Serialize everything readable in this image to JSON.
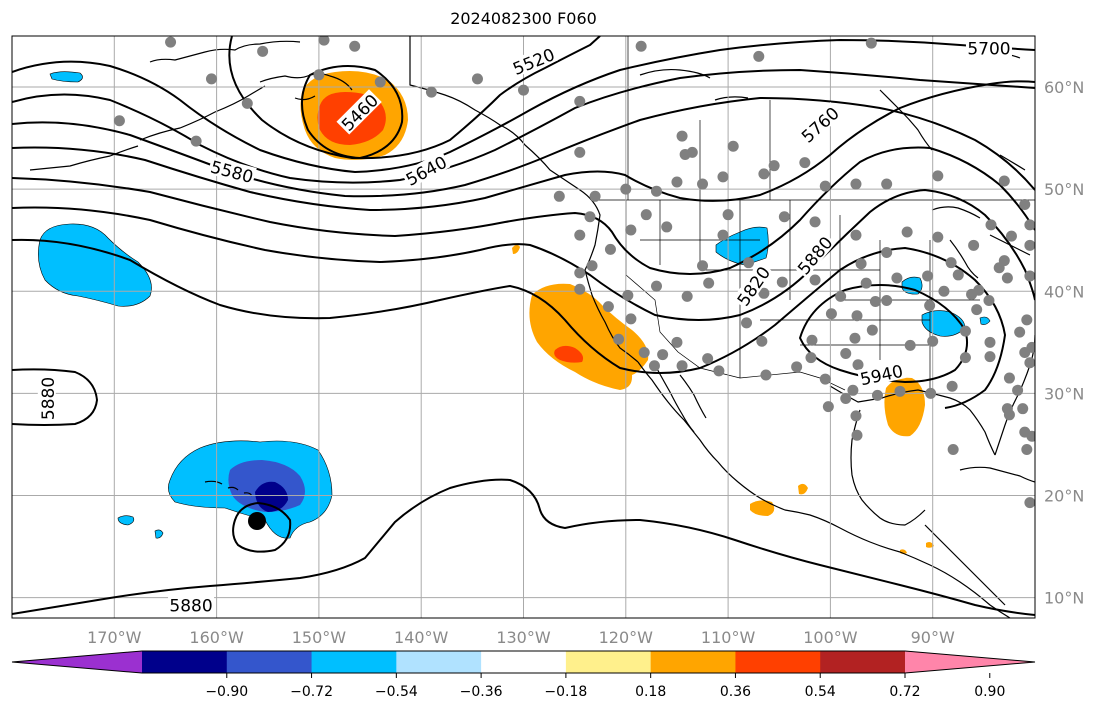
{
  "title": "2024082300 F060",
  "map": {
    "projection": "PlateCarree",
    "lon_range": [
      -180,
      -80
    ],
    "lat_range": [
      8,
      65
    ],
    "lon_ticks": [
      {
        "value": -170,
        "label": "170°W"
      },
      {
        "value": -160,
        "label": "160°W"
      },
      {
        "value": -150,
        "label": "150°W"
      },
      {
        "value": -140,
        "label": "140°W"
      },
      {
        "value": -130,
        "label": "130°W"
      },
      {
        "value": -120,
        "label": "120°W"
      },
      {
        "value": -110,
        "label": "110°W"
      },
      {
        "value": -100,
        "label": "100°W"
      },
      {
        "value": -90,
        "label": "90°W"
      }
    ],
    "lat_ticks": [
      {
        "value": 60,
        "label": "60°N"
      },
      {
        "value": 50,
        "label": "50°N"
      },
      {
        "value": 40,
        "label": "40°N"
      },
      {
        "value": 30,
        "label": "30°N"
      },
      {
        "value": 20,
        "label": "20°N"
      },
      {
        "value": 10,
        "label": "10°N"
      }
    ],
    "grid": true
  },
  "contours": {
    "labels": [
      {
        "text": "5460",
        "lon": -146,
        "lat": 57.5,
        "angle": -45
      },
      {
        "text": "5520",
        "lon": -129,
        "lat": 62.5,
        "angle": -22
      },
      {
        "text": "5580",
        "lon": -158.5,
        "lat": 51.7,
        "angle": 15
      },
      {
        "text": "5640",
        "lon": -139.5,
        "lat": 51.8,
        "angle": -28
      },
      {
        "text": "5700",
        "lon": -84.5,
        "lat": 63.8,
        "angle": 0
      },
      {
        "text": "5760",
        "lon": -101,
        "lat": 56.3,
        "angle": -42
      },
      {
        "text": "5820",
        "lon": -107.5,
        "lat": 40.5,
        "angle": -55
      },
      {
        "text": "5880",
        "lon": -101.5,
        "lat": 43.5,
        "angle": -50
      },
      {
        "text": "5940",
        "lon": -95,
        "lat": 31.8,
        "angle": -12
      },
      {
        "text": "5880",
        "lon": -176.5,
        "lat": 29.5,
        "angle": -90
      },
      {
        "text": "5880",
        "lon": -162.5,
        "lat": 9.2,
        "angle": 0
      }
    ]
  },
  "colorbar": {
    "colors": [
      "#9b30d0",
      "#00008b",
      "#3456cc",
      "#00bfff",
      "#b0e2ff",
      "#ffffff",
      "#fff08c",
      "#ffa500",
      "#ff4000",
      "#b22222",
      "#ff85aa"
    ],
    "tick_labels": [
      "−0.90",
      "−0.72",
      "−0.54",
      "−0.36",
      "−0.18",
      "0.18",
      "0.36",
      "0.54",
      "0.72",
      "0.90"
    ]
  },
  "stations": [
    [
      -164.5,
      64.4
    ],
    [
      -155.5,
      63.5
    ],
    [
      -149.5,
      64.6
    ],
    [
      -146.5,
      64
    ],
    [
      -160.5,
      60.8
    ],
    [
      -157,
      58.4
    ],
    [
      -169.5,
      56.7
    ],
    [
      -162,
      54.7
    ],
    [
      -150,
      61.2
    ],
    [
      -144,
      60.5
    ],
    [
      -139,
      59.5
    ],
    [
      -134.5,
      60.8
    ],
    [
      -130,
      59.7
    ],
    [
      -124.5,
      58.6
    ],
    [
      -118.5,
      64
    ],
    [
      -107,
      63
    ],
    [
      -96,
      64.3
    ],
    [
      -124.5,
      53.6
    ],
    [
      -114.5,
      55.2
    ],
    [
      -109.5,
      54.2
    ],
    [
      -113.5,
      53.6
    ],
    [
      -114.2,
      53.4
    ],
    [
      -105.5,
      52.3
    ],
    [
      -102.5,
      52.6
    ],
    [
      -106.5,
      51.5
    ],
    [
      -110.5,
      51.2
    ],
    [
      -100.5,
      50.3
    ],
    [
      -97.5,
      50.5
    ],
    [
      -94.5,
      50.5
    ],
    [
      -89.5,
      51.3
    ],
    [
      -83,
      50.8
    ],
    [
      -120,
      50
    ],
    [
      -126.5,
      49.3
    ],
    [
      -123,
      49.3
    ],
    [
      -117,
      49.8
    ],
    [
      -112.5,
      50.5
    ],
    [
      -115,
      50.7
    ],
    [
      -118,
      47.5
    ],
    [
      -123.5,
      47.3
    ],
    [
      -124.5,
      45.5
    ],
    [
      -119.5,
      46
    ],
    [
      -116,
      46.3
    ],
    [
      -110,
      47.5
    ],
    [
      -104.5,
      47.3
    ],
    [
      -101.5,
      46.8
    ],
    [
      -97.5,
      45.5
    ],
    [
      -100.5,
      44.3
    ],
    [
      -110.5,
      45.5
    ],
    [
      -112.5,
      42.5
    ],
    [
      -108,
      42.8
    ],
    [
      -104.7,
      40.9
    ],
    [
      -97,
      42.7
    ],
    [
      -94.5,
      43.8
    ],
    [
      -92.5,
      45.8
    ],
    [
      -89.5,
      45.3
    ],
    [
      -88.2,
      42.8
    ],
    [
      -86,
      44.5
    ],
    [
      -83.5,
      42.3
    ],
    [
      -85.5,
      40.1
    ],
    [
      -87.5,
      41.6
    ],
    [
      -90.5,
      41.5
    ],
    [
      -93.5,
      41.3
    ],
    [
      -96.5,
      40.8
    ],
    [
      -101.5,
      41.1
    ],
    [
      -99,
      39.5
    ],
    [
      -106.5,
      39.8
    ],
    [
      -111.9,
      40.8
    ],
    [
      -114,
      39.5
    ],
    [
      -117,
      40.5
    ],
    [
      -119.8,
      39.6
    ],
    [
      -123.3,
      42.5
    ],
    [
      -124.5,
      41.8
    ],
    [
      -124.5,
      40.2
    ],
    [
      -121.5,
      44.1
    ],
    [
      -121.7,
      38.5
    ],
    [
      -119.5,
      37.3
    ],
    [
      -120.7,
      35.3
    ],
    [
      -118.2,
      34
    ],
    [
      -116.4,
      33.8
    ],
    [
      -117.2,
      32.7
    ],
    [
      -115,
      35
    ],
    [
      -114.5,
      32.7
    ],
    [
      -112,
      33.4
    ],
    [
      -110.9,
      32.2
    ],
    [
      -108.2,
      36.9
    ],
    [
      -106.7,
      35.1
    ],
    [
      -106.3,
      31.8
    ],
    [
      -103.3,
      32.6
    ],
    [
      -101.8,
      35.2
    ],
    [
      -97.6,
      35.4
    ],
    [
      -95.9,
      36.2
    ],
    [
      -98.5,
      33.9
    ],
    [
      -97.3,
      32.8
    ],
    [
      -101.9,
      33.5
    ],
    [
      -100.5,
      31.4
    ],
    [
      -97.8,
      30.3
    ],
    [
      -95.4,
      29.8
    ],
    [
      -93.2,
      30.2
    ],
    [
      -90.2,
      30
    ],
    [
      -88.1,
      30.7
    ],
    [
      -98.5,
      29.5
    ],
    [
      -97.5,
      27.8
    ],
    [
      -97.4,
      25.9
    ],
    [
      -100.2,
      28.7
    ],
    [
      -92.2,
      34.7
    ],
    [
      -90,
      35.1
    ],
    [
      -86.8,
      33.5
    ],
    [
      -86.8,
      36.1
    ],
    [
      -84.4,
      33.6
    ],
    [
      -82.5,
      31.5
    ],
    [
      -81.7,
      30.3
    ],
    [
      -82.5,
      27.9
    ],
    [
      -81.2,
      28.5
    ],
    [
      -80.3,
      25.8
    ],
    [
      -94.5,
      39.1
    ],
    [
      -90.3,
      38.6
    ],
    [
      -86.2,
      39.7
    ],
    [
      -84.5,
      39.1
    ],
    [
      -85.7,
      38.2
    ],
    [
      -88.9,
      40
    ],
    [
      -95.6,
      39
    ],
    [
      -97.4,
      37.6
    ],
    [
      -99.9,
      37.8
    ],
    [
      -81.5,
      36
    ],
    [
      -84.4,
      35
    ],
    [
      -81,
      34
    ],
    [
      -80.5,
      33
    ],
    [
      -82.7,
      28.5
    ],
    [
      -81,
      26.2
    ],
    [
      -80.8,
      24.5
    ],
    [
      -80.5,
      41.5
    ],
    [
      -80.5,
      44.5
    ],
    [
      -80.5,
      46.5
    ],
    [
      -81,
      48.5
    ],
    [
      -80.8,
      37.2
    ],
    [
      -80.3,
      34.5
    ],
    [
      -88,
      24.5
    ],
    [
      -82.7,
      41.3
    ],
    [
      -83,
      43
    ],
    [
      -82.3,
      45.4
    ],
    [
      -84.3,
      46.5
    ],
    [
      -80.5,
      19.3
    ]
  ]
}
